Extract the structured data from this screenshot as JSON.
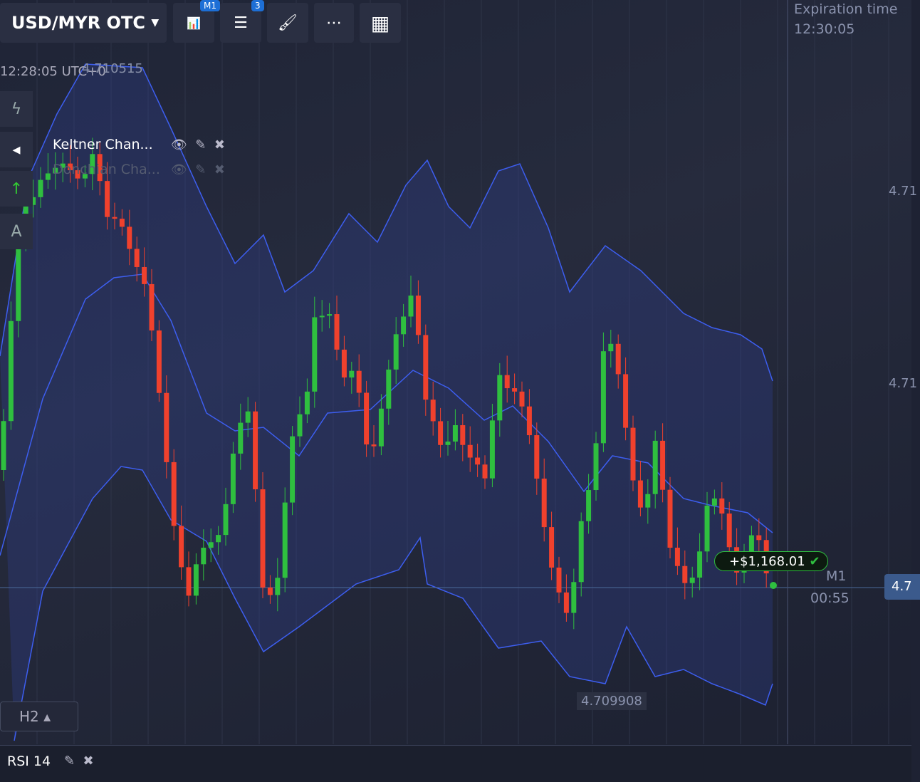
{
  "toolbar": {
    "pair": "USD/MYR OTC",
    "badges": [
      "M1",
      "3"
    ]
  },
  "chart": {
    "time": "12:28:05 UTC+0",
    "high_label": "4.710515",
    "low_label": "4.709908",
    "indicators": [
      "Keltner Chan...",
      "Donchian Cha..."
    ],
    "expiration": {
      "label": "Expiration time",
      "time": "12:30:05"
    },
    "price_labels": [
      "4.71",
      "4.71"
    ],
    "current_price": "4.7",
    "trade": {
      "profit": "+$1,168.01",
      "timeframe": "M1",
      "countdown": "00:55"
    },
    "timeframe": "H2"
  },
  "footer": {
    "indicator": "RSI 14"
  }
}
